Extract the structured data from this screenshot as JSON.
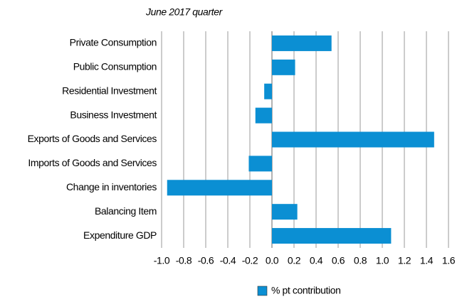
{
  "chart_data": {
    "type": "hbar",
    "title": "June 2017 quarter",
    "categories": [
      "Private Consumption",
      "Public Consumption",
      "Residential Investment",
      "Business Investment",
      "Exports of Goods and Services",
      "Imports of Goods and Services",
      "Change in inventories",
      "Balancing Item",
      "Expenditure GDP"
    ],
    "series": [
      {
        "name": "% pt contribution",
        "color": "#0b8fd3",
        "values": [
          0.54,
          0.21,
          -0.07,
          -0.15,
          1.47,
          -0.21,
          -0.95,
          0.23,
          1.08
        ]
      }
    ],
    "xlim": [
      -1.0,
      1.6
    ],
    "xticks": [
      {
        "value": -1.0,
        "label": "-1.0"
      },
      -0.8,
      -0.6,
      -0.4,
      -0.2,
      {
        "value": 0.0,
        "label": "0.0"
      },
      0.2,
      0.4,
      0.6,
      0.8,
      {
        "value": 1.0,
        "label": "1.0"
      },
      1.2,
      1.4,
      1.6
    ],
    "grid": true,
    "legend": "bottom"
  }
}
